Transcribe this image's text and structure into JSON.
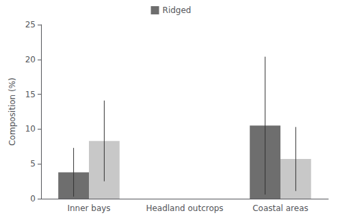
{
  "chart_data": {
    "type": "bar",
    "ylabel": "Composition (%)",
    "categories": [
      "Inner bays",
      "Headland outcrops",
      "Coastal areas"
    ],
    "series": [
      {
        "name": "Ridged",
        "color": "#6e6e6e",
        "values": [
          3.8,
          0.0,
          10.5
        ],
        "errors": [
          3.5,
          0.0,
          9.9
        ]
      },
      {
        "color": "#c8c8c8",
        "values": [
          8.3,
          0.0,
          5.7
        ],
        "errors": [
          5.8,
          0.0,
          4.6
        ]
      }
    ],
    "ylim": [
      0,
      25
    ],
    "yticks": [
      0,
      5,
      10,
      15,
      20,
      25
    ],
    "grid": false,
    "legend": "top"
  }
}
